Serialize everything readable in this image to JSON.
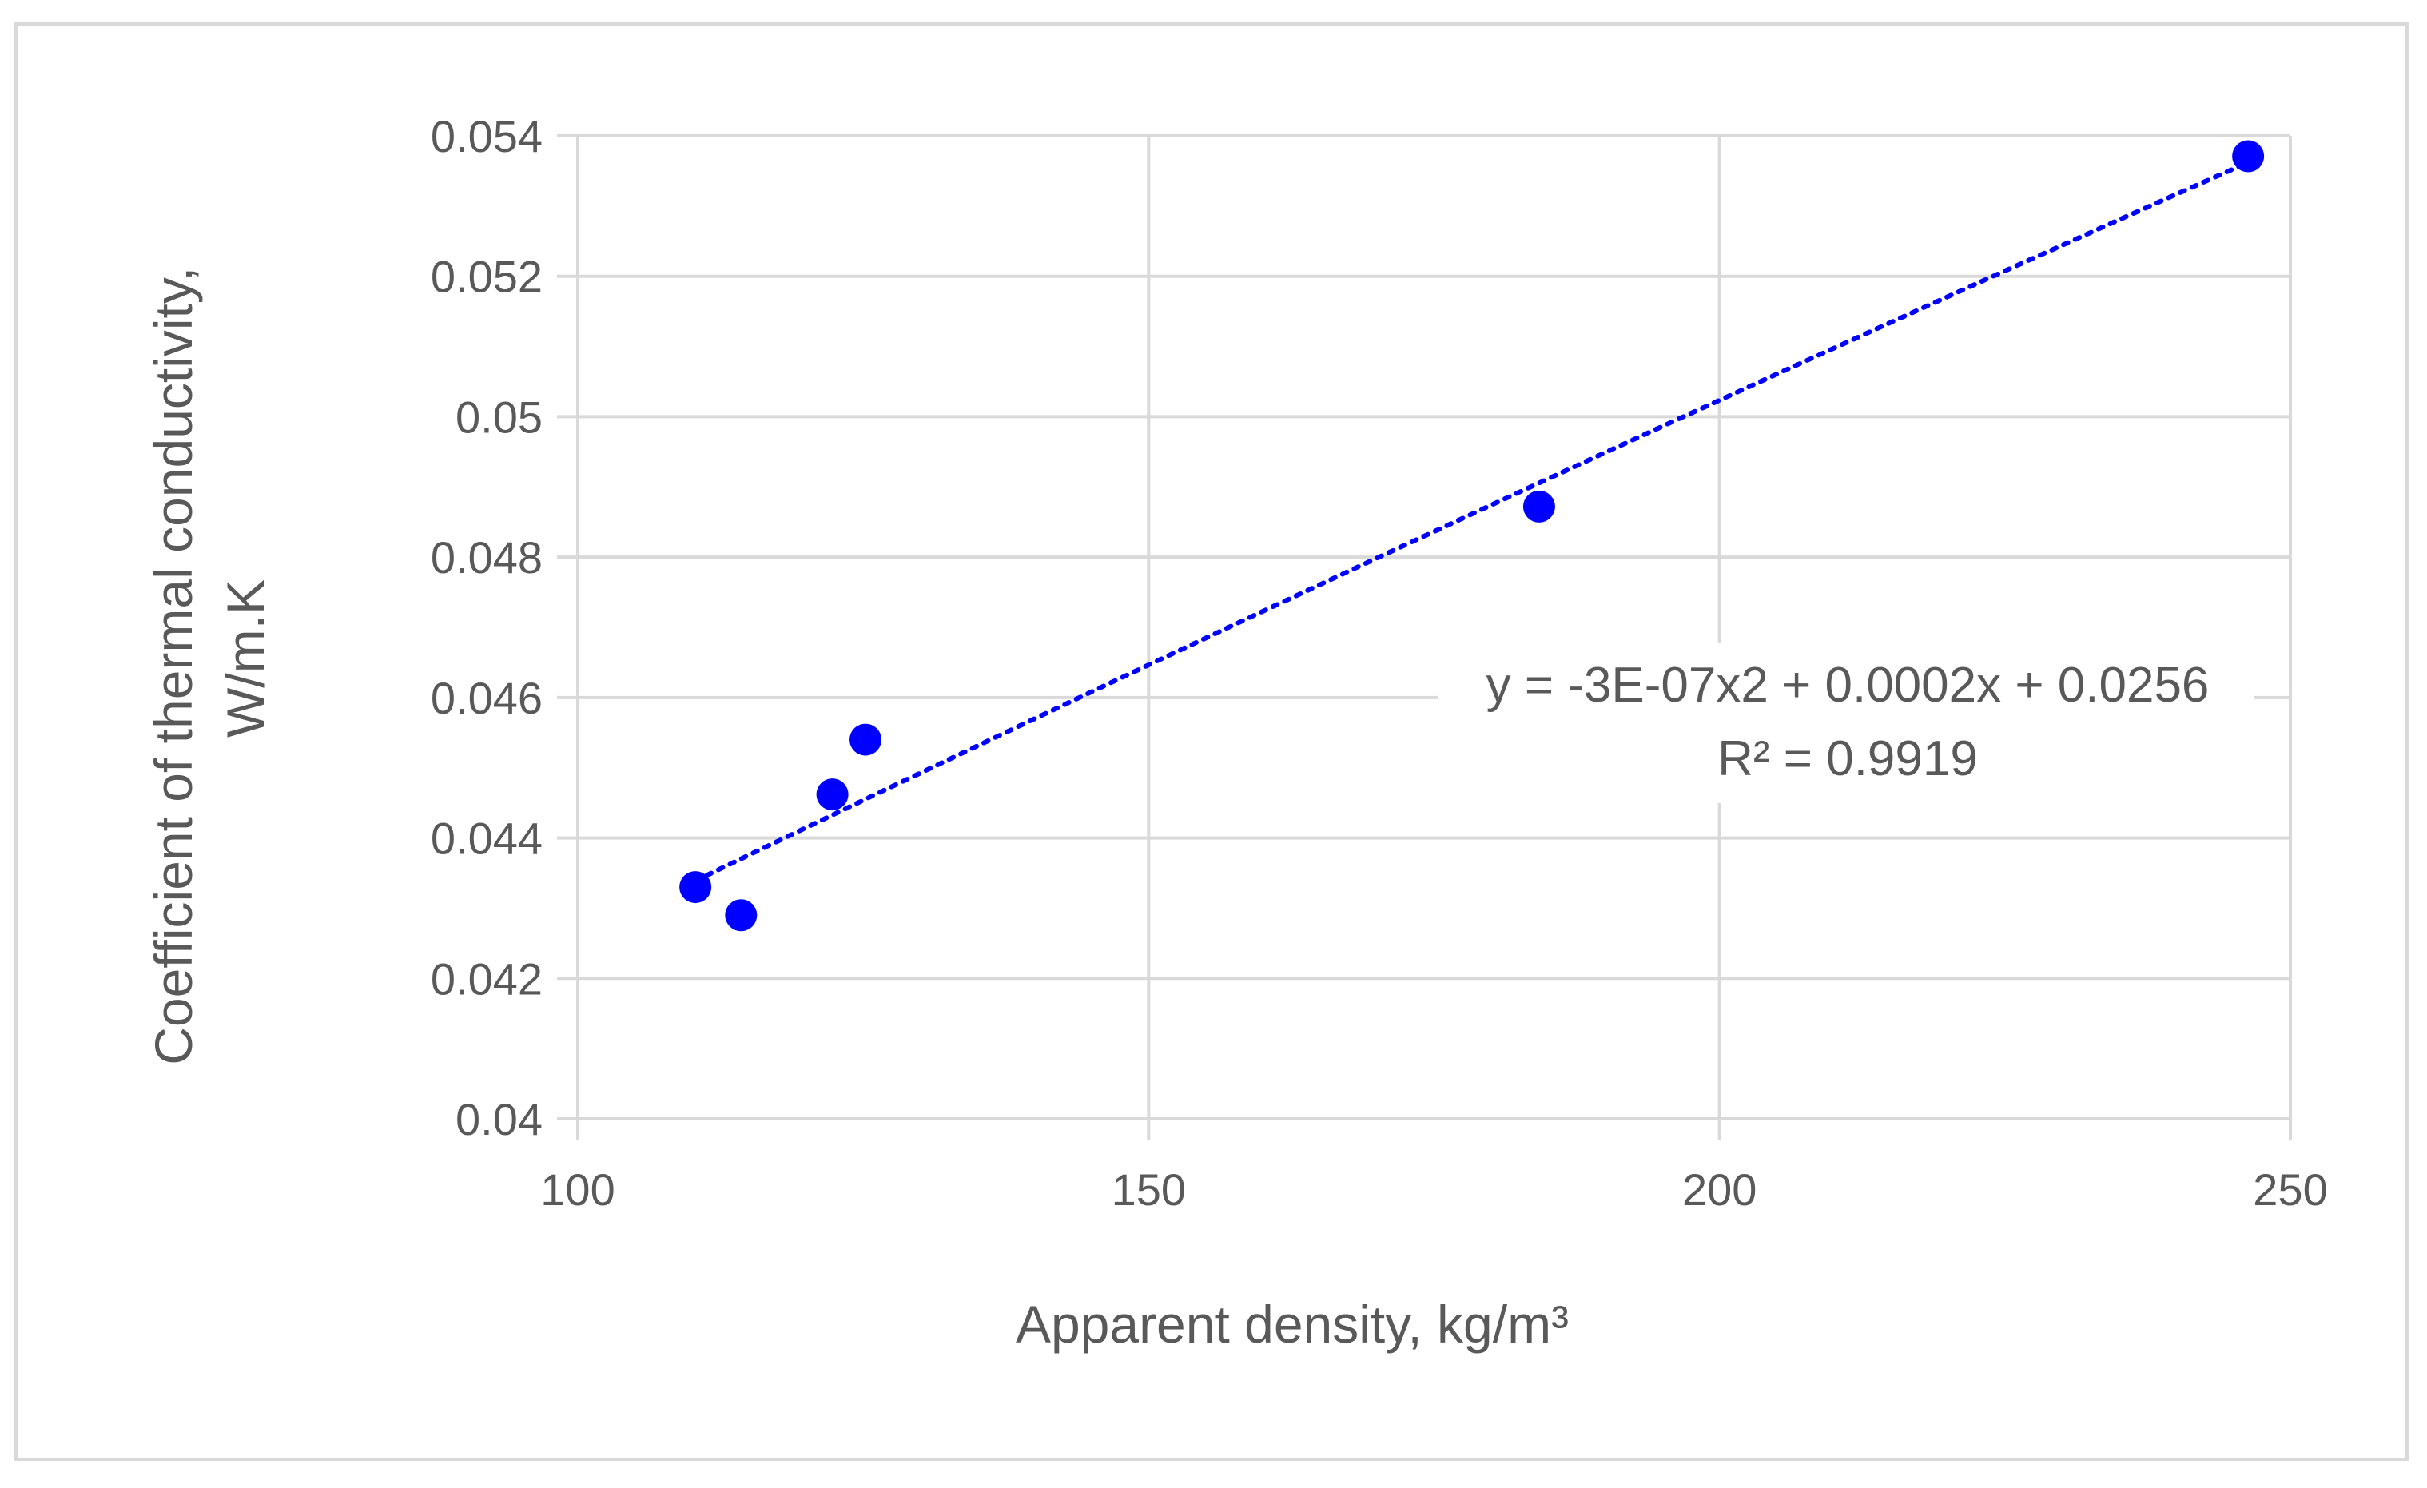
{
  "chart_data": {
    "type": "scatter",
    "xlabel": "Apparent density, kg/m³",
    "ylabel_lines": [
      "Coefficient  of thermal conductivity,",
      "W/m.K"
    ],
    "xlim": [
      100,
      250
    ],
    "ylim": [
      0.04,
      0.054
    ],
    "x_ticks": [
      "100",
      "150",
      "200",
      "250"
    ],
    "y_ticks": [
      "0.04",
      "0.042",
      "0.044",
      "0.046",
      "0.048",
      "0.05",
      "0.052",
      "0.054"
    ],
    "grid": true,
    "marker_color": "#0000ff",
    "trendline_color": "#0000ff",
    "series": [
      {
        "points": [
          {
            "x": 110.3,
            "y": 0.0433
          },
          {
            "x": 114.3,
            "y": 0.0429
          },
          {
            "x": 122.3,
            "y": 0.04462
          },
          {
            "x": 125.2,
            "y": 0.0454
          },
          {
            "x": 184.2,
            "y": 0.04872
          },
          {
            "x": 246.3,
            "y": 0.05371
          }
        ]
      }
    ],
    "trendline": {
      "type": "polynomial",
      "x_range": [
        110.3,
        246.3
      ],
      "equation": "y = -3E-07x2 + 0.0002x + 0.0256",
      "r_squared": "R² = 0.9919"
    }
  }
}
